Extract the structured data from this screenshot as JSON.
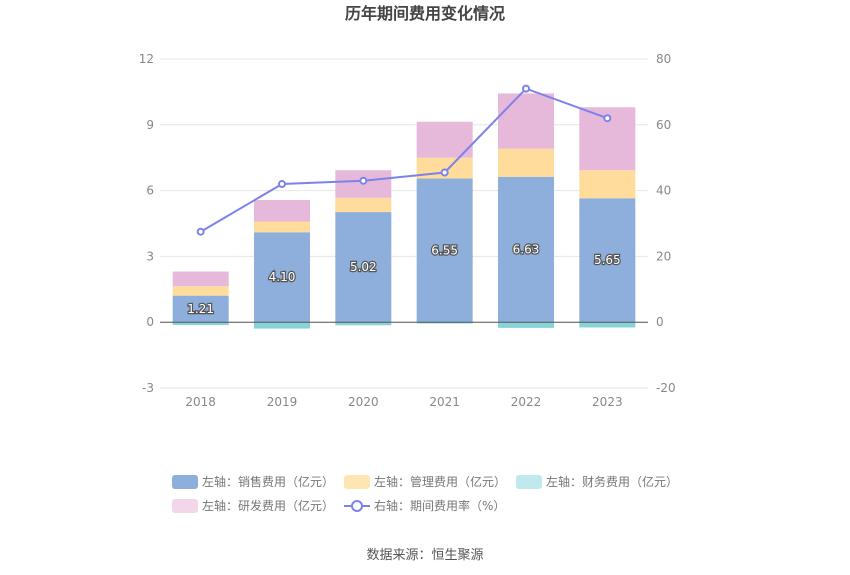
{
  "chart_data": {
    "type": "bar",
    "title": "历年期间费用变化情况",
    "categories": [
      "2018",
      "2019",
      "2020",
      "2021",
      "2022",
      "2023"
    ],
    "left_axis": {
      "ylim": [
        -3,
        12
      ],
      "ticks": [
        "-3",
        "0",
        "3",
        "6",
        "9",
        "12"
      ]
    },
    "right_axis": {
      "ylim": [
        -20,
        80
      ],
      "ticks": [
        "-20",
        "0",
        "20",
        "40",
        "60",
        "80"
      ]
    },
    "series": [
      {
        "name": "左轴：销售费用（亿元）",
        "axis": "left",
        "kind": "stacked-bar",
        "color": "#8eaedb",
        "values": [
          1.21,
          4.1,
          5.02,
          6.55,
          6.63,
          5.65
        ],
        "labels": [
          "1.21",
          "4.10",
          "5.02",
          "6.55",
          "6.63",
          "5.65"
        ]
      },
      {
        "name": "左轴：管理费用（亿元）",
        "axis": "left",
        "kind": "stacked-bar",
        "color": "#ffdb9c",
        "values": [
          0.43,
          0.49,
          0.65,
          0.95,
          1.28,
          1.28
        ]
      },
      {
        "name": "左轴：财务费用（亿元）",
        "axis": "left",
        "kind": "stacked-bar",
        "color": "#86d4d8",
        "values": [
          -0.13,
          -0.29,
          -0.14,
          -0.06,
          -0.26,
          -0.24
        ]
      },
      {
        "name": "左轴：研发费用（亿元）",
        "axis": "left",
        "kind": "stacked-bar",
        "color": "#e6b8da",
        "values": [
          0.67,
          0.98,
          1.26,
          1.64,
          2.52,
          2.87
        ]
      },
      {
        "name": "右轴：期间费用率（%）",
        "axis": "right",
        "kind": "line",
        "color": "#7b83ea",
        "values": [
          27.5,
          42,
          43,
          45.5,
          71,
          62
        ]
      }
    ],
    "legend_position": "bottom",
    "grid": true
  },
  "footer": {
    "source": "数据来源：恒生聚源"
  }
}
